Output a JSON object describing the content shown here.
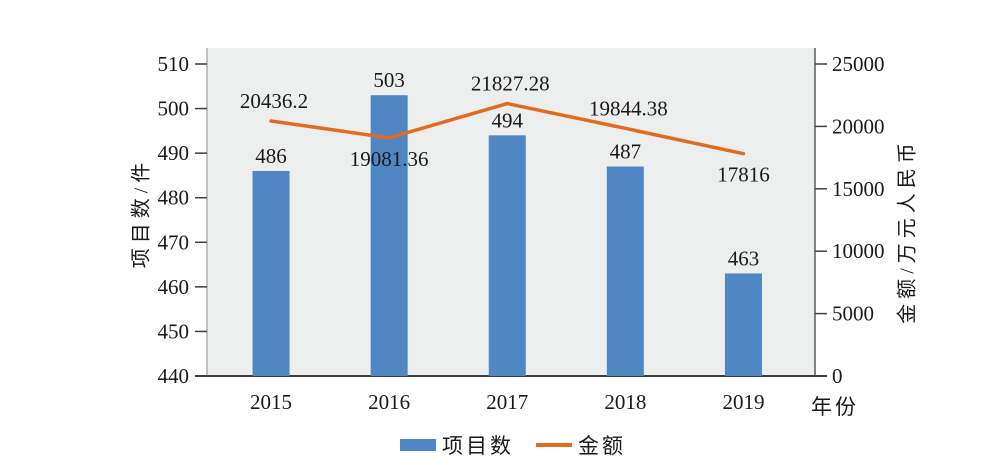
{
  "chart_data": {
    "type": "combo-bar-line",
    "title": "",
    "categories": [
      "2015",
      "2016",
      "2017",
      "2018",
      "2019"
    ],
    "series": [
      {
        "name": "项目数",
        "type": "bar",
        "axis": "left",
        "color": "#4F86C4",
        "values": [
          486,
          503,
          494,
          487,
          463
        ],
        "labels": [
          "486",
          "503",
          "494",
          "487",
          "463"
        ],
        "label_color": "#1A1A1A"
      },
      {
        "name": "金额",
        "type": "line",
        "axis": "right",
        "color": "#E26B1F",
        "values": [
          20436.2,
          19081.36,
          21827.28,
          19844.38,
          17816
        ],
        "labels": [
          "20436.2",
          "19081.36",
          "21827.28",
          "19844.38",
          "17816"
        ],
        "label_side": [
          "above",
          "below",
          "above",
          "above",
          "below"
        ],
        "label_color": "#DF703B"
      }
    ],
    "x_axis": {
      "title": "年份"
    },
    "left_axis": {
      "title": "项目数/件",
      "min": 440,
      "max": 510,
      "step": 10
    },
    "right_axis": {
      "title": "金额/万元人民币",
      "min": 0,
      "max": 25000,
      "step": 5000
    },
    "legend": {
      "position": "bottom",
      "items": [
        {
          "label": "项目数",
          "swatch": "bar",
          "color": "#4F86C4"
        },
        {
          "label": "金额",
          "swatch": "line",
          "color": "#E26B1F"
        }
      ]
    },
    "style": {
      "plot_bg": "#EDEEEE",
      "grid": false,
      "left_axis_line_color": "#A6A6A6",
      "right_axis_line_color": "#595959",
      "bottom_axis_line_color": "#3F3F3F",
      "tick_color": "#3F3F3F",
      "text_color": "#1A1A1A"
    }
  }
}
